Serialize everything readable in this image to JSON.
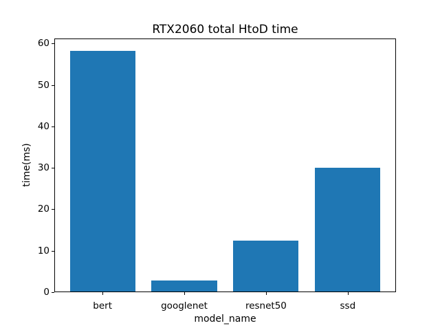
{
  "chart_data": {
    "type": "bar",
    "title": "RTX2060 total HtoD time",
    "xlabel": "model_name",
    "ylabel": "time(ms)",
    "categories": [
      "bert",
      "googlenet",
      "resnet50",
      "ssd"
    ],
    "values": [
      58.3,
      2.8,
      12.4,
      30.1
    ],
    "yticks": [
      0,
      10,
      20,
      30,
      40,
      50,
      60
    ],
    "ylim": [
      0,
      61.2
    ],
    "xlim": [
      -0.59,
      3.59
    ],
    "bar_width": 0.8,
    "bar_color": "#1f77b4",
    "background_color": "#ffffff",
    "grid": false,
    "legend": null
  }
}
